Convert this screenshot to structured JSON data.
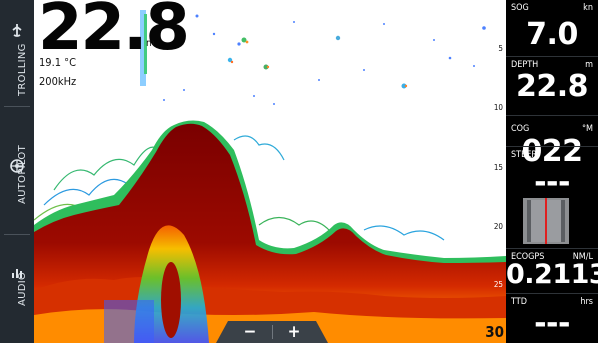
{
  "sidebar": {
    "items": [
      {
        "label": "TROLLING",
        "icon": "trolling-icon"
      },
      {
        "label": "AUTOPILOT",
        "icon": "autopilot-icon"
      },
      {
        "label": "AUDIO",
        "icon": "audio-icon"
      }
    ]
  },
  "sonar": {
    "depth_value": "22.8",
    "depth_unit": "m",
    "water_temp": "19.1 °C",
    "frequency": "200kHz",
    "scale_labels": [
      "5",
      "10",
      "15",
      "20",
      "25"
    ],
    "scale_bottom": "30",
    "zoom_out_label": "−",
    "zoom_in_label": "+"
  },
  "data_panel": {
    "sog": {
      "caption": "SOG",
      "unit": "kn",
      "value": "7.0"
    },
    "depth": {
      "caption": "DEPTH",
      "unit": "m",
      "value": "22.8"
    },
    "cog": {
      "caption": "COG",
      "unit": "°M",
      "value": "022"
    },
    "steer": {
      "caption": "STEER",
      "value": "---"
    },
    "ecogps": {
      "caption": "ECOGPS",
      "unit": "NM/L",
      "value": "0.2113"
    },
    "ttd": {
      "caption": "TTD",
      "unit": "hrs",
      "value": "---"
    }
  },
  "colors": {
    "rail_bg": "#232a31",
    "sonar_bottom": "#8b0000",
    "steer_needle": "#e02020"
  }
}
